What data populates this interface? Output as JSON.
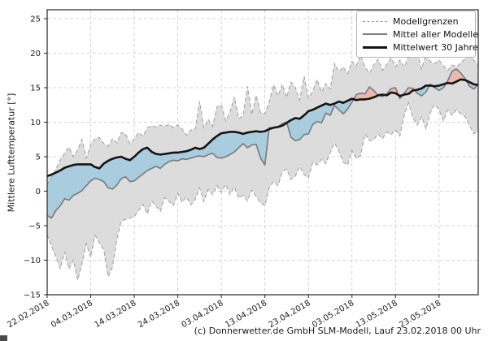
{
  "figure": {
    "ylabel": "Mittlere Lufttemperatur [°]",
    "footer": "(c) Donnerwetter.de GmbH SLM-Modell, Lauf 23.02.2018 00 Uhr",
    "legend": [
      {
        "label": "Modellgrenzen",
        "style": "dashed-gray"
      },
      {
        "label": "Mittel aller Modelle",
        "style": "solid-gray"
      },
      {
        "label": "Mittelwert 30 Jahre",
        "style": "solid-black"
      }
    ]
  },
  "chart_data": {
    "type": "line",
    "title": "",
    "xlabel": "",
    "ylabel": "Mittlere Lufttemperatur [°]",
    "ylim": [
      -15,
      25
    ],
    "y_ticks": [
      -15,
      -10,
      -5,
      0,
      5,
      10,
      15,
      20,
      25
    ],
    "x_unit": "days since 22.02.2018, daily values",
    "x_tick_days": [
      0,
      10,
      20,
      30,
      40,
      50,
      60,
      70,
      80,
      90
    ],
    "x_tick_labels": [
      "22.02.2018",
      "04.03.2018",
      "14.03.2018",
      "24.03.2018",
      "03.04.2018",
      "13.04.2018",
      "23.04.2018",
      "03.05.2018",
      "13.05.2018",
      "23.05.2018"
    ],
    "grid": true,
    "legend_position": "upper right",
    "colors": {
      "band_fill": "#dcdcdc",
      "band_edge": "#9e9e9e",
      "model_mean_line": "#7a7a7a",
      "mean30_line": "#141414",
      "below_normal_fill": "#8ec4de",
      "above_normal_fill": "#f5a694",
      "grid_line": "#c7c7c7",
      "fill_opacity": 0.65
    },
    "series": [
      {
        "name": "Modellgrenzen (Obergrenze)",
        "role": "upper",
        "values": [
          0.9,
          2.0,
          3.2,
          4.5,
          5.5,
          6.4,
          5.0,
          6.0,
          7.5,
          4.8,
          6.8,
          7.6,
          7.8,
          6.9,
          6.5,
          7.6,
          7.0,
          8.5,
          8.3,
          6.9,
          7.6,
          8.5,
          8.0,
          9.2,
          9.5,
          9.3,
          9.6,
          9.4,
          9.7,
          9.2,
          9.6,
          9.0,
          8.1,
          8.9,
          9.0,
          13.0,
          9.2,
          10.4,
          9.4,
          12.2,
          12.5,
          10.2,
          11.5,
          13.7,
          10.5,
          11.0,
          15.2,
          11.1,
          13.9,
          11.4,
          11.2,
          13.0,
          15.4,
          13.8,
          15.5,
          13.6,
          15.8,
          15.0,
          13.2,
          16.7,
          13.5,
          14.5,
          16.2,
          14.3,
          15.6,
          14.8,
          18.5,
          17.3,
          18.0,
          17.0,
          18.8,
          18.2,
          19.7,
          18.0,
          17.1,
          18.3,
          19.1,
          17.5,
          18.4,
          19.3,
          18.0,
          19.0,
          18.0,
          19.5,
          20.8,
          20.2,
          17.7,
          19.9,
          18.8,
          18.5,
          19.0,
          18.2,
          17.5,
          18.3,
          18.0,
          18.6,
          19.2,
          20.1,
          19.0,
          18.3
        ]
      },
      {
        "name": "Modellgrenzen (Untergrenze)",
        "role": "lower",
        "values": [
          -6.3,
          -8.0,
          -9.5,
          -11.2,
          -8.8,
          -11.3,
          -10.0,
          -12.9,
          -10.5,
          -7.6,
          -9.6,
          -6.4,
          -7.5,
          -8.5,
          -12.4,
          -11.0,
          -7.0,
          -4.3,
          -4.1,
          -3.9,
          -3.7,
          -2.8,
          -1.9,
          -3.3,
          -1.4,
          -2.2,
          -2.9,
          -0.9,
          -1.5,
          -2.1,
          -0.3,
          -1.6,
          -0.8,
          -2.0,
          -1.2,
          0.5,
          -1.5,
          0.3,
          -0.5,
          0.8,
          -0.2,
          1.0,
          -0.5,
          0.6,
          -1.0,
          -0.6,
          -1.4,
          0.2,
          -0.8,
          -1.7,
          -2.1,
          0.5,
          1.4,
          0.8,
          2.8,
          3.2,
          1.7,
          2.2,
          3.6,
          2.4,
          1.9,
          4.2,
          3.8,
          4.6,
          4.0,
          5.6,
          7.0,
          5.8,
          4.2,
          3.8,
          5.9,
          4.7,
          5.2,
          8.3,
          7.3,
          7.5,
          8.3,
          7.6,
          8.6,
          8.2,
          8.9,
          8.0,
          11.0,
          12.8,
          10.6,
          9.6,
          10.8,
          9.0,
          11.4,
          12.6,
          11.8,
          10.2,
          11.8,
          11.0,
          11.8,
          11.2,
          10.8,
          9.5,
          8.3,
          8.7
        ]
      },
      {
        "name": "Mittel aller Modelle",
        "role": "model_mean",
        "values": [
          -3.5,
          -3.9,
          -2.8,
          -2.1,
          -1.1,
          -1.3,
          -0.6,
          -0.3,
          0.1,
          0.8,
          1.5,
          1.9,
          1.7,
          1.4,
          0.5,
          0.3,
          0.9,
          1.8,
          2.1,
          1.4,
          1.5,
          2.0,
          2.5,
          3.0,
          3.3,
          3.6,
          3.3,
          3.9,
          4.3,
          4.5,
          4.4,
          4.7,
          4.6,
          4.8,
          5.0,
          5.1,
          5.0,
          5.3,
          5.5,
          4.9,
          4.8,
          5.0,
          5.3,
          5.7,
          6.3,
          6.9,
          6.3,
          6.7,
          6.8,
          4.8,
          3.8,
          9.2,
          9.2,
          9.3,
          9.8,
          10.0,
          7.8,
          7.3,
          7.5,
          8.2,
          8.3,
          9.7,
          10.1,
          9.9,
          11.3,
          11.0,
          12.4,
          11.8,
          11.2,
          11.9,
          12.9,
          14.0,
          14.2,
          14.1,
          15.1,
          14.6,
          13.9,
          13.7,
          14.1,
          14.9,
          15.0,
          13.4,
          14.2,
          15.0,
          14.9,
          14.2,
          13.8,
          14.4,
          15.5,
          15.0,
          14.6,
          15.0,
          16.0,
          17.4,
          17.7,
          17.1,
          16.3,
          15.2,
          14.8,
          15.5
        ]
      },
      {
        "name": "Mittelwert 30 Jahre",
        "role": "mean30",
        "values": [
          2.2,
          2.4,
          2.7,
          3.0,
          3.4,
          3.6,
          3.8,
          3.9,
          3.9,
          3.9,
          3.9,
          3.5,
          3.3,
          4.0,
          4.4,
          4.7,
          4.9,
          5.0,
          4.7,
          4.5,
          5.0,
          5.6,
          6.1,
          6.3,
          5.7,
          5.4,
          5.3,
          5.4,
          5.5,
          5.6,
          5.6,
          5.7,
          5.8,
          6.0,
          6.3,
          6.1,
          6.3,
          6.9,
          7.5,
          8.0,
          8.4,
          8.5,
          8.6,
          8.6,
          8.5,
          8.3,
          8.5,
          8.6,
          8.7,
          8.6,
          8.7,
          9.0,
          9.2,
          9.3,
          9.5,
          9.9,
          10.3,
          10.6,
          10.5,
          11.0,
          11.6,
          11.8,
          12.1,
          12.4,
          12.7,
          12.5,
          12.7,
          13.0,
          12.8,
          13.1,
          13.4,
          13.2,
          13.3,
          13.3,
          13.4,
          13.6,
          13.9,
          14.0,
          13.9,
          14.3,
          14.2,
          13.8,
          14.0,
          14.1,
          14.6,
          14.7,
          14.9,
          15.3,
          15.3,
          15.2,
          15.3,
          15.5,
          15.7,
          15.6,
          15.9,
          16.2,
          16.1,
          15.8,
          15.5,
          15.4
        ]
      }
    ]
  }
}
